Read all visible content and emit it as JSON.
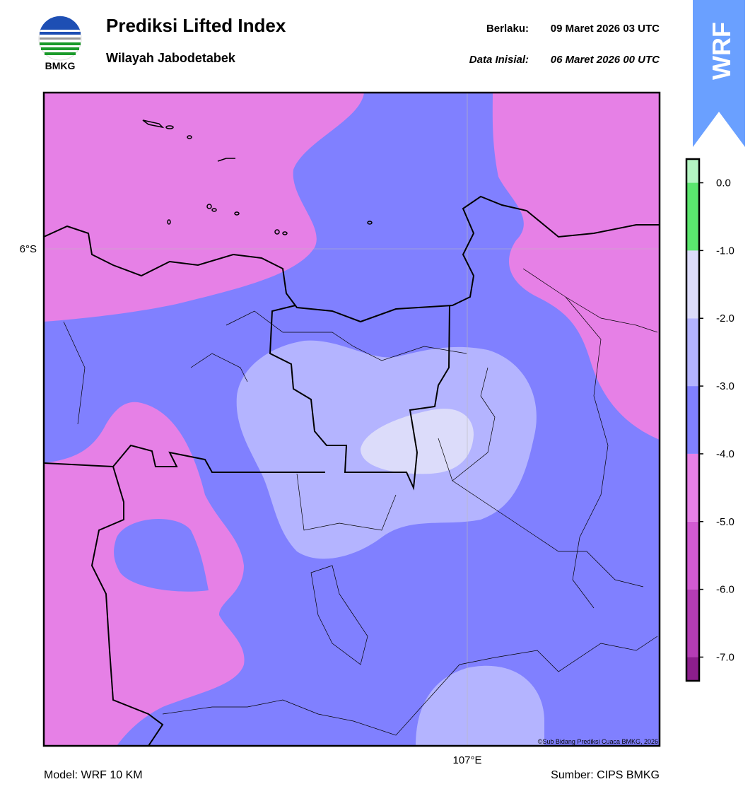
{
  "header": {
    "logo_text": "BMKG",
    "title": "Prediksi Lifted Index",
    "subtitle": "Wilayah Jabodetabek",
    "valid_label": "Berlaku:",
    "valid_time": "09 Maret 2026 03 UTC",
    "init_label": "Data Inisial:",
    "init_time": "06 Maret 2026 00 UTC"
  },
  "badge": "WRF",
  "map": {
    "lat_label": "6°S",
    "lon_label": "107°E",
    "copyright": "©Sub Bidang Prediksi Cuaca BMKG, 2026"
  },
  "colorbar": {
    "range": [
      -7.35,
      0.35
    ],
    "ticks": [
      {
        "value": 0,
        "label": "0.0"
      },
      {
        "value": -1,
        "label": "-1.0"
      },
      {
        "value": -2,
        "label": "-2.0"
      },
      {
        "value": -3,
        "label": "-3.0"
      },
      {
        "value": -4,
        "label": "-4.0"
      },
      {
        "value": -5,
        "label": "-5.0"
      },
      {
        "value": -6,
        "label": "-6.0"
      },
      {
        "value": -7,
        "label": "-7.0"
      }
    ],
    "colors": [
      "#8c1e8c",
      "#b43cb4",
      "#d25ad2",
      "#e680e6",
      "#8080ff",
      "#b4b4ff",
      "#dcdcfa",
      "#5ae66e",
      "#b4f5c3",
      "#e6ffee"
    ]
  },
  "footer": {
    "model": "Model: WRF 10 KM",
    "source": "Sumber: CIPS BMKG"
  }
}
